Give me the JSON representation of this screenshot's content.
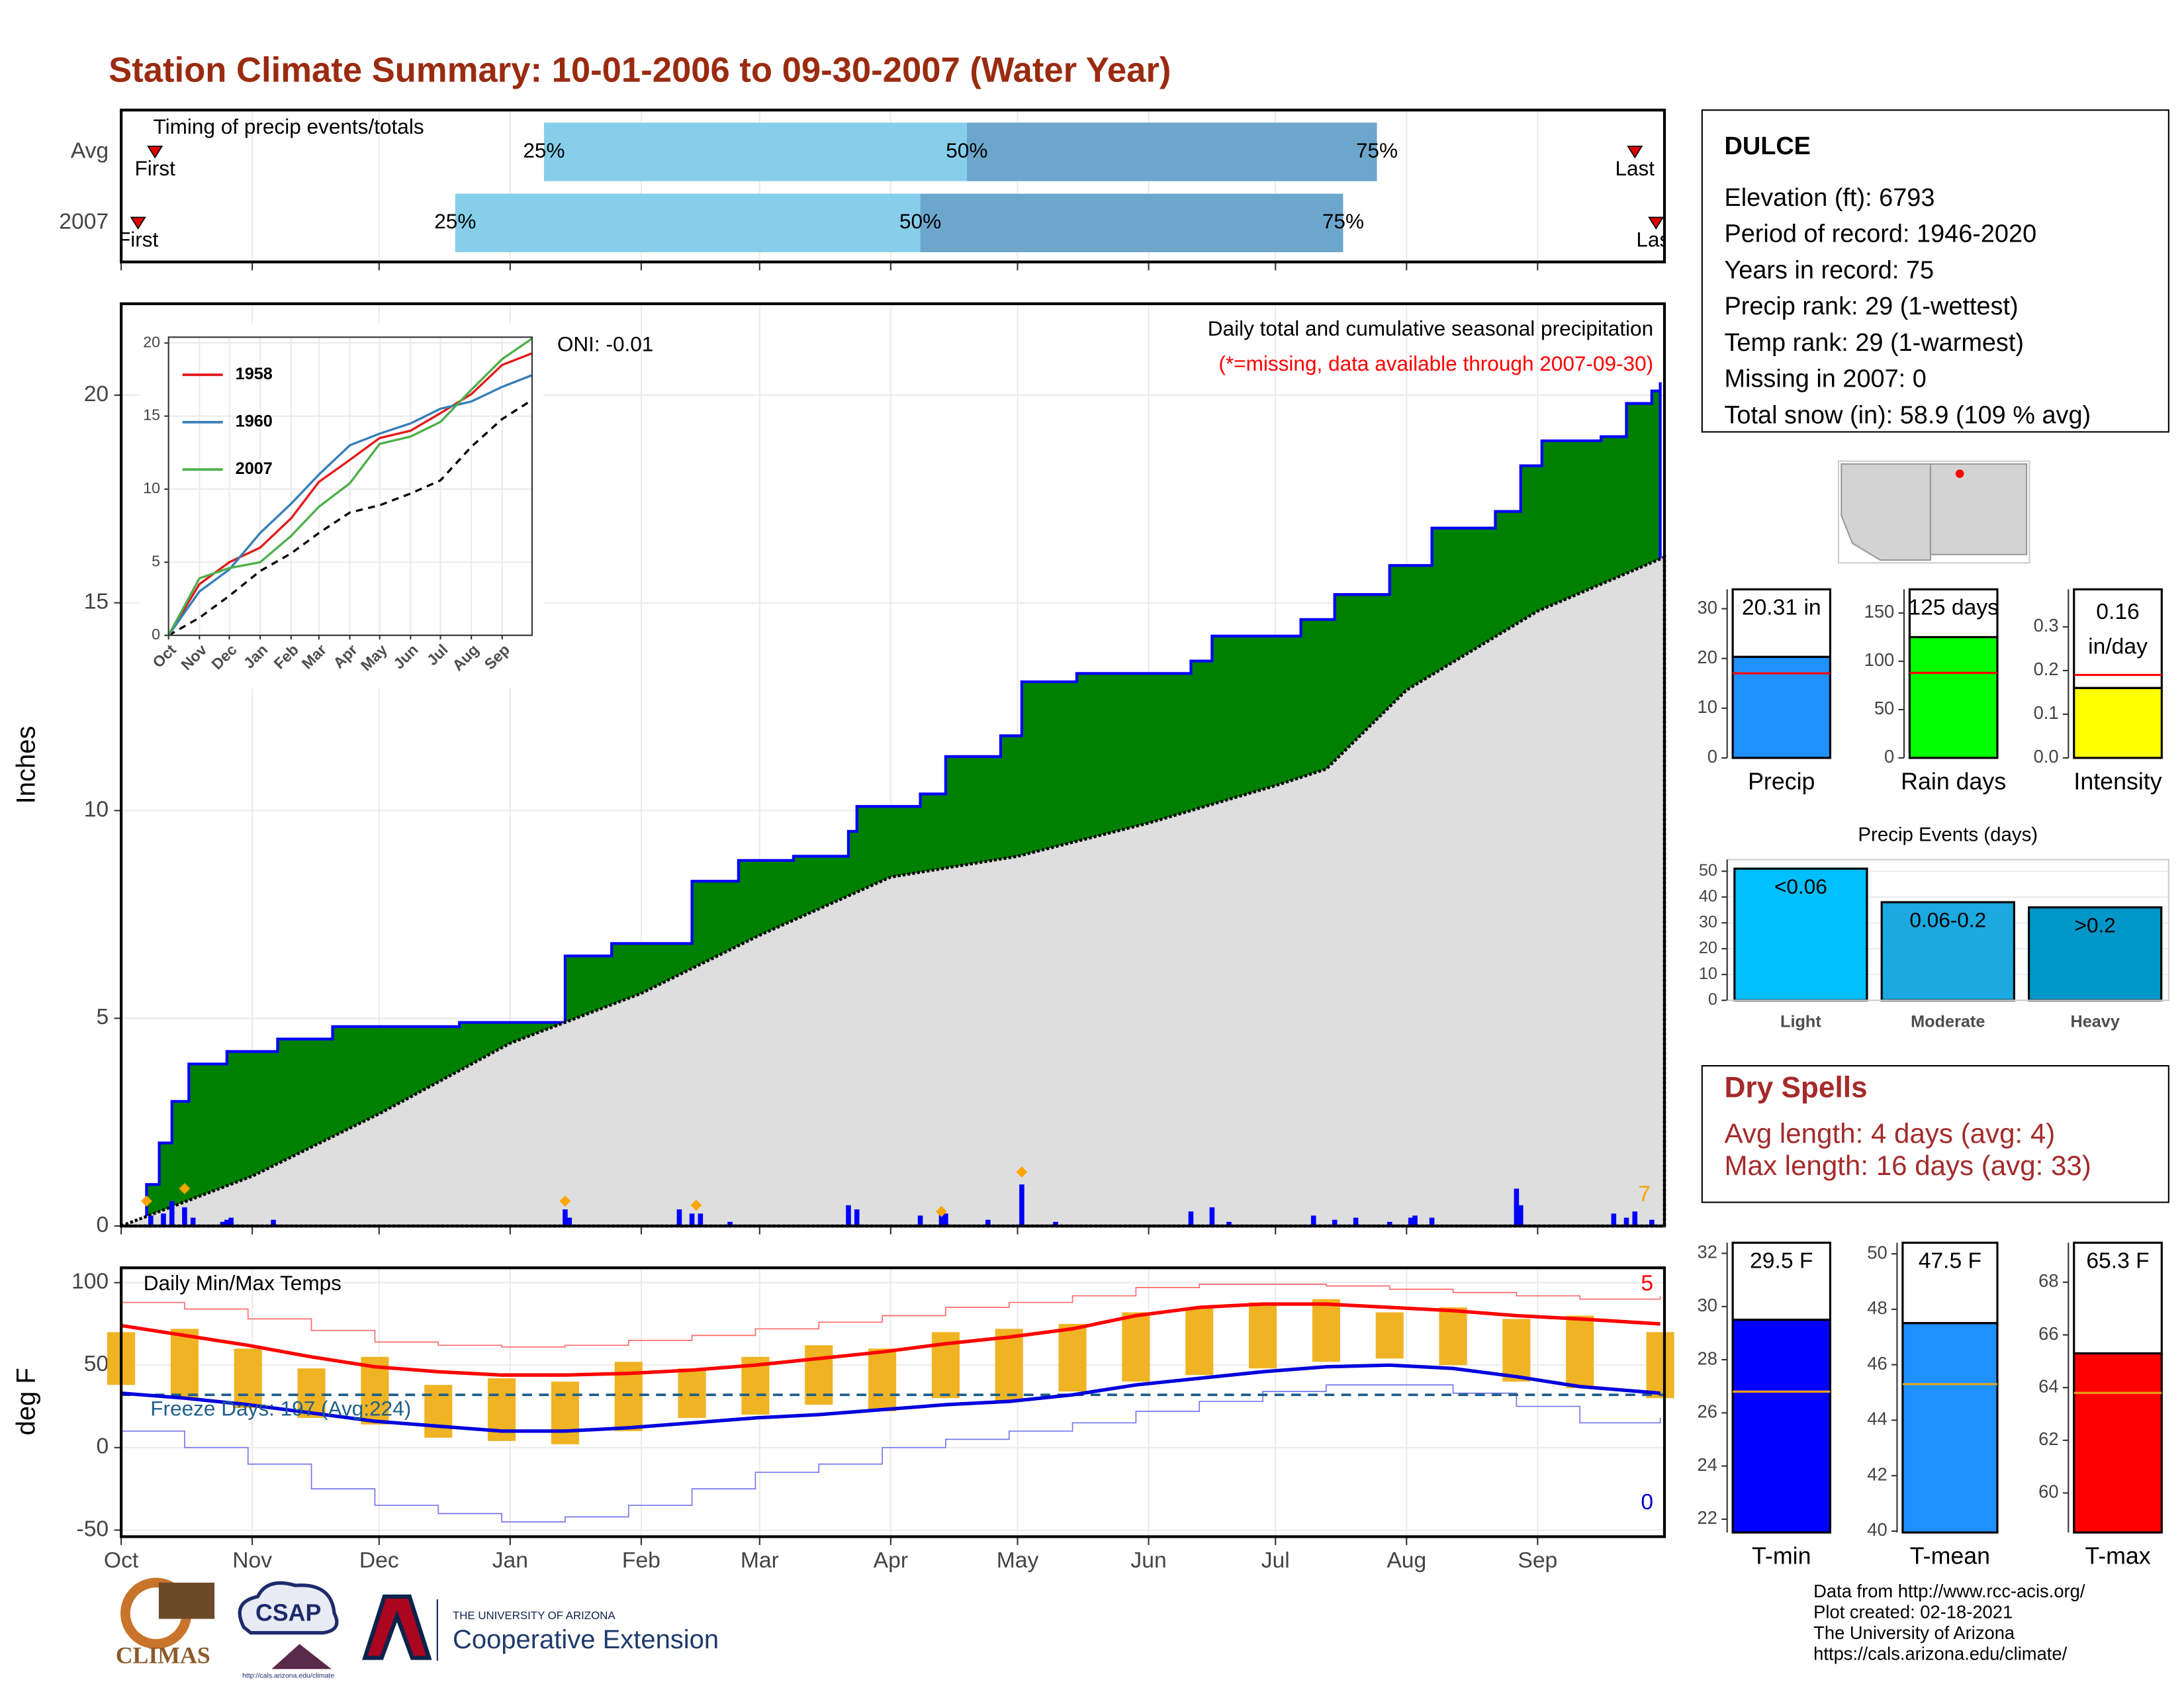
{
  "title": "Station Climate Summary: 10-01-2006 to 09-30-2007 (Water Year)",
  "station_info": {
    "name": "DULCE",
    "lines": [
      "Elevation (ft): 6793",
      "Period of record: 1946-2020",
      "Years in record: 75",
      "Precip rank: 29 (1-wettest)",
      "Temp rank: 29 (1-warmest)",
      "Missing in 2007: 0",
      "Total snow (in): 58.9 (109 % avg)"
    ]
  },
  "dry_spells": {
    "title": "Dry Spells",
    "lines": [
      "Avg length: 4 days (avg: 4)",
      "Max length: 16 days (avg: 33)"
    ]
  },
  "footer": [
    "Data from http://www.rcc-acis.org/",
    "Plot created: 02-18-2021",
    "The University of Arizona",
    "https://cals.arizona.edu/climate/"
  ],
  "logos": {
    "climas": "CLIMAS",
    "csap": "CSAP",
    "csap_url": "http://cals.arizona.edu/climate",
    "university": "THE UNIVERSITY OF ARIZONA",
    "extension": "Cooperative Extension"
  },
  "chart_data": [
    {
      "type": "timeline",
      "title": "Timing of precip events/totals",
      "categories": [
        "Avg",
        "2007"
      ],
      "first": [
        8,
        4
      ],
      "q25": [
        100,
        79
      ],
      "q50": [
        200,
        189
      ],
      "q75": [
        297,
        289
      ],
      "last": [
        358,
        363
      ],
      "first_label": "First",
      "last_label": "Last",
      "quantile_labels": [
        "25%",
        "50%",
        "75%"
      ],
      "colors": [
        "#87ceeb",
        "#6ca6cd"
      ],
      "marker_color": "#e00000",
      "xlim": [
        0,
        365
      ],
      "xticks": [
        0,
        31,
        61,
        92,
        123,
        151,
        182,
        212,
        243,
        273,
        304,
        335
      ],
      "grid": true
    },
    {
      "type": "cumulative",
      "title": "Daily total and cumulative seasonal precipitation",
      "note": "(*=missing, data available through 2007-09-30)",
      "oni": "ONI: -0.01",
      "count_label": "7",
      "ylabel": "Inches",
      "xlim": [
        0,
        365
      ],
      "ylim": [
        0,
        22.2
      ],
      "xticks": [
        0,
        31,
        61,
        92,
        123,
        151,
        182,
        212,
        243,
        273,
        304,
        335
      ],
      "yticks": [
        0,
        5,
        10,
        15,
        20
      ],
      "grid": true,
      "cumulative": {
        "x": [
          0,
          6,
          9,
          12,
          16,
          24,
          25,
          37,
          50,
          80,
          105,
          116,
          135,
          146,
          159,
          172,
          174,
          189,
          195,
          208,
          213,
          226,
          253,
          258,
          279,
          287,
          300,
          310,
          325,
          331,
          336,
          350,
          356,
          362,
          364
        ],
        "values": [
          0,
          1.0,
          2.0,
          3.0,
          3.9,
          3.9,
          4.2,
          4.5,
          4.8,
          4.9,
          6.5,
          6.8,
          8.3,
          8.8,
          8.9,
          9.5,
          10.1,
          10.4,
          11.3,
          11.8,
          13.1,
          13.3,
          13.6,
          14.2,
          14.6,
          15.2,
          15.9,
          16.8,
          17.2,
          18.3,
          18.9,
          19.0,
          19.8,
          20.1,
          20.31
        ],
        "color": "#0000ff",
        "fill": "#008000"
      },
      "average": {
        "x": [
          0,
          31,
          61,
          92,
          123,
          151,
          182,
          212,
          243,
          273,
          285,
          304,
          335,
          365
        ],
        "values": [
          0,
          1.2,
          2.7,
          4.4,
          5.6,
          7.0,
          8.4,
          8.9,
          9.7,
          10.6,
          11.0,
          12.9,
          14.8,
          16.1
        ],
        "color": "#000000",
        "fill": "#dedede"
      },
      "daily": {
        "x": [
          7,
          10,
          12,
          15,
          17,
          24,
          25,
          26,
          36,
          105,
          106,
          132,
          135,
          137,
          144,
          172,
          174,
          189,
          194,
          195,
          205,
          213,
          221,
          253,
          258,
          262,
          282,
          287,
          292,
          300,
          305,
          306,
          310,
          330,
          331,
          353,
          356,
          358,
          362
        ],
        "values": [
          0.25,
          0.3,
          0.6,
          0.45,
          0.2,
          0.1,
          0.15,
          0.2,
          0.15,
          0.4,
          0.2,
          0.4,
          0.3,
          0.3,
          0.1,
          0.5,
          0.4,
          0.25,
          0.35,
          0.3,
          0.15,
          1.0,
          0.1,
          0.35,
          0.45,
          0.1,
          0.25,
          0.15,
          0.2,
          0.1,
          0.2,
          0.25,
          0.2,
          0.9,
          0.5,
          0.3,
          0.2,
          0.35,
          0.15
        ],
        "color": "#0000ff"
      },
      "events": {
        "x": [
          6,
          15,
          105,
          136,
          194,
          213
        ],
        "values": [
          0.6,
          0.9,
          0.6,
          0.5,
          0.35,
          1.3
        ],
        "color": "#ffa500"
      }
    },
    {
      "type": "line",
      "xlim": [
        0,
        365
      ],
      "ylim": [
        0,
        20.4
      ],
      "xticks": [
        {
          "value": 0,
          "label": "Oct"
        },
        {
          "value": 31,
          "label": "Nov"
        },
        {
          "value": 61,
          "label": "Dec"
        },
        {
          "value": 92,
          "label": "Jan"
        },
        {
          "value": 123,
          "label": "Feb"
        },
        {
          "value": 151,
          "label": "Mar"
        },
        {
          "value": 182,
          "label": "Apr"
        },
        {
          "value": 212,
          "label": "May"
        },
        {
          "value": 243,
          "label": "Jun"
        },
        {
          "value": 273,
          "label": "Jul"
        },
        {
          "value": 304,
          "label": "Aug"
        },
        {
          "value": 335,
          "label": "Sep"
        }
      ],
      "yticks": [
        0,
        5,
        10,
        15,
        20
      ],
      "grid": true,
      "x": [
        0,
        31,
        61,
        92,
        123,
        151,
        182,
        212,
        243,
        273,
        304,
        335,
        365
      ],
      "series": [
        {
          "name": "1958",
          "color": "#e41a1c",
          "values": [
            0,
            3.5,
            5.0,
            6.0,
            8.0,
            10.5,
            12.0,
            13.5,
            14.0,
            15.2,
            16.5,
            18.5,
            19.3
          ]
        },
        {
          "name": "1960",
          "color": "#377eb8",
          "values": [
            0,
            3.0,
            4.5,
            7.0,
            9.0,
            11.0,
            13.0,
            13.8,
            14.5,
            15.5,
            16.0,
            17.0,
            17.8
          ]
        },
        {
          "name": "2007",
          "color": "#4daf4a",
          "values": [
            0,
            3.9,
            4.6,
            5.0,
            6.8,
            8.8,
            10.4,
            13.1,
            13.6,
            14.6,
            16.8,
            18.9,
            20.31
          ]
        }
      ],
      "average": {
        "color": "#000000",
        "values": [
          0,
          1.2,
          2.7,
          4.4,
          5.6,
          7.0,
          8.4,
          8.9,
          9.7,
          10.6,
          12.9,
          14.8,
          16.1
        ]
      }
    },
    {
      "type": "range",
      "title": "Daily Min/Max Temps",
      "ylabel": "deg F",
      "freeze_label": "Freeze Days: 197 (Avg:224)",
      "freeze_line": 32,
      "record_high_count": "5",
      "record_low_count": "0",
      "xlim": [
        0,
        365
      ],
      "ylim": [
        -54,
        109
      ],
      "xticks": [
        {
          "value": 0,
          "label": "Oct"
        },
        {
          "value": 31,
          "label": "Nov"
        },
        {
          "value": 61,
          "label": "Dec"
        },
        {
          "value": 92,
          "label": "Jan"
        },
        {
          "value": 123,
          "label": "Feb"
        },
        {
          "value": 151,
          "label": "Mar"
        },
        {
          "value": 182,
          "label": "Apr"
        },
        {
          "value": 212,
          "label": "May"
        },
        {
          "value": 243,
          "label": "Jun"
        },
        {
          "value": 273,
          "label": "Jul"
        },
        {
          "value": 304,
          "label": "Aug"
        },
        {
          "value": 335,
          "label": "Sep"
        }
      ],
      "yticks": [
        -50,
        0,
        50,
        100
      ],
      "grid": true,
      "x": [
        0,
        15,
        30,
        45,
        60,
        75,
        90,
        105,
        120,
        135,
        150,
        165,
        180,
        195,
        210,
        225,
        240,
        255,
        270,
        285,
        300,
        315,
        330,
        345,
        364
      ],
      "daily_max": [
        70,
        72,
        60,
        48,
        55,
        38,
        42,
        40,
        52,
        48,
        55,
        62,
        60,
        70,
        72,
        75,
        82,
        85,
        88,
        90,
        82,
        85,
        78,
        80,
        70
      ],
      "daily_min": [
        38,
        30,
        24,
        18,
        14,
        6,
        4,
        2,
        10,
        18,
        20,
        26,
        22,
        30,
        28,
        34,
        40,
        44,
        48,
        52,
        54,
        50,
        40,
        36,
        30
      ],
      "daily_color": "#f0b323",
      "avg_max": {
        "color": "#ff0000",
        "values": [
          74,
          68,
          62,
          55,
          49,
          46,
          44,
          44,
          45,
          47,
          50,
          54,
          58,
          63,
          67,
          72,
          80,
          85,
          87,
          87,
          85,
          83,
          80,
          78,
          75
        ]
      },
      "avg_min": {
        "color": "#0000dd",
        "values": [
          33,
          30,
          26,
          21,
          16,
          13,
          10,
          10,
          12,
          15,
          18,
          20,
          23,
          26,
          28,
          32,
          38,
          42,
          46,
          49,
          50,
          48,
          43,
          37,
          33
        ]
      },
      "record_high": {
        "color": "#ff6a6a",
        "values": [
          88,
          84,
          78,
          71,
          64,
          62,
          61,
          62,
          65,
          68,
          72,
          76,
          80,
          85,
          88,
          92,
          97,
          99,
          99,
          98,
          96,
          94,
          92,
          90,
          92
        ]
      },
      "record_low": {
        "color": "#7777ee",
        "values": [
          10,
          0,
          -10,
          -25,
          -35,
          -40,
          -45,
          -42,
          -35,
          -25,
          -15,
          -10,
          0,
          5,
          10,
          15,
          22,
          28,
          34,
          38,
          38,
          33,
          25,
          15,
          18
        ]
      },
      "freeze_color": "#1f5f8b"
    },
    {
      "type": "bar",
      "categories": [
        "Precip"
      ],
      "values": [
        20.31
      ],
      "value_labels": [
        "20.31 in"
      ],
      "average": 17.0,
      "color": "#1e90ff",
      "average_color": "#ff0000",
      "ylim": [
        0,
        33.9
      ],
      "yticks": [
        0,
        10,
        20,
        30
      ]
    },
    {
      "type": "bar",
      "categories": [
        "Rain days"
      ],
      "values": [
        125
      ],
      "value_labels": [
        "125 days"
      ],
      "average": 88,
      "color": "#00ff00",
      "average_color": "#ff0000",
      "ylim": [
        0,
        174.5
      ],
      "yticks": [
        0,
        50,
        100,
        150
      ]
    },
    {
      "type": "bar",
      "categories": [
        "Intensity"
      ],
      "values": [
        0.16
      ],
      "unit_label": "in/day",
      "average": 0.19,
      "color": "#ffff00",
      "average_color": "#ff0000",
      "ylim": [
        0,
        0.386
      ],
      "yticks": [
        {
          "value": 0,
          "label": "0.0"
        },
        0.1,
        0.2,
        0.3
      ]
    },
    {
      "type": "bar",
      "title": "Precip Events (days)",
      "categories": [
        "Light",
        "Moderate",
        "Heavy"
      ],
      "values": [
        51,
        38,
        36
      ],
      "bin_labels": [
        "<0.06",
        "0.06-0.2",
        ">0.2"
      ],
      "colors": [
        "#00bfff",
        "#1ca9e0",
        "#0096c8"
      ],
      "ylim": [
        0,
        54.5
      ],
      "yticks": [
        0,
        10,
        20,
        30,
        40,
        50
      ],
      "grid": true
    },
    {
      "type": "bar",
      "categories": [
        "T-min"
      ],
      "values": [
        29.5
      ],
      "value_labels": [
        "29.5 F"
      ],
      "average": 26.8,
      "color": "#0000ff",
      "average_color": "#e8a317",
      "ylim": [
        21.5,
        32.4
      ],
      "yticks": [
        22,
        24,
        26,
        28,
        30,
        32
      ]
    },
    {
      "type": "bar",
      "categories": [
        "T-mean"
      ],
      "values": [
        47.5
      ],
      "value_labels": [
        "47.5 F"
      ],
      "average": 45.3,
      "color": "#1e90ff",
      "average_color": "#e8a317",
      "ylim": [
        39.95,
        50.4
      ],
      "yticks": [
        40,
        42,
        44,
        46,
        48,
        50
      ]
    },
    {
      "type": "bar",
      "categories": [
        "T-max"
      ],
      "values": [
        65.3
      ],
      "value_labels": [
        "65.3 F"
      ],
      "average": 63.8,
      "color": "#ff0000",
      "average_color": "#e8a317",
      "ylim": [
        58.5,
        69.5
      ],
      "yticks": [
        60,
        62,
        64,
        66,
        68
      ]
    }
  ]
}
